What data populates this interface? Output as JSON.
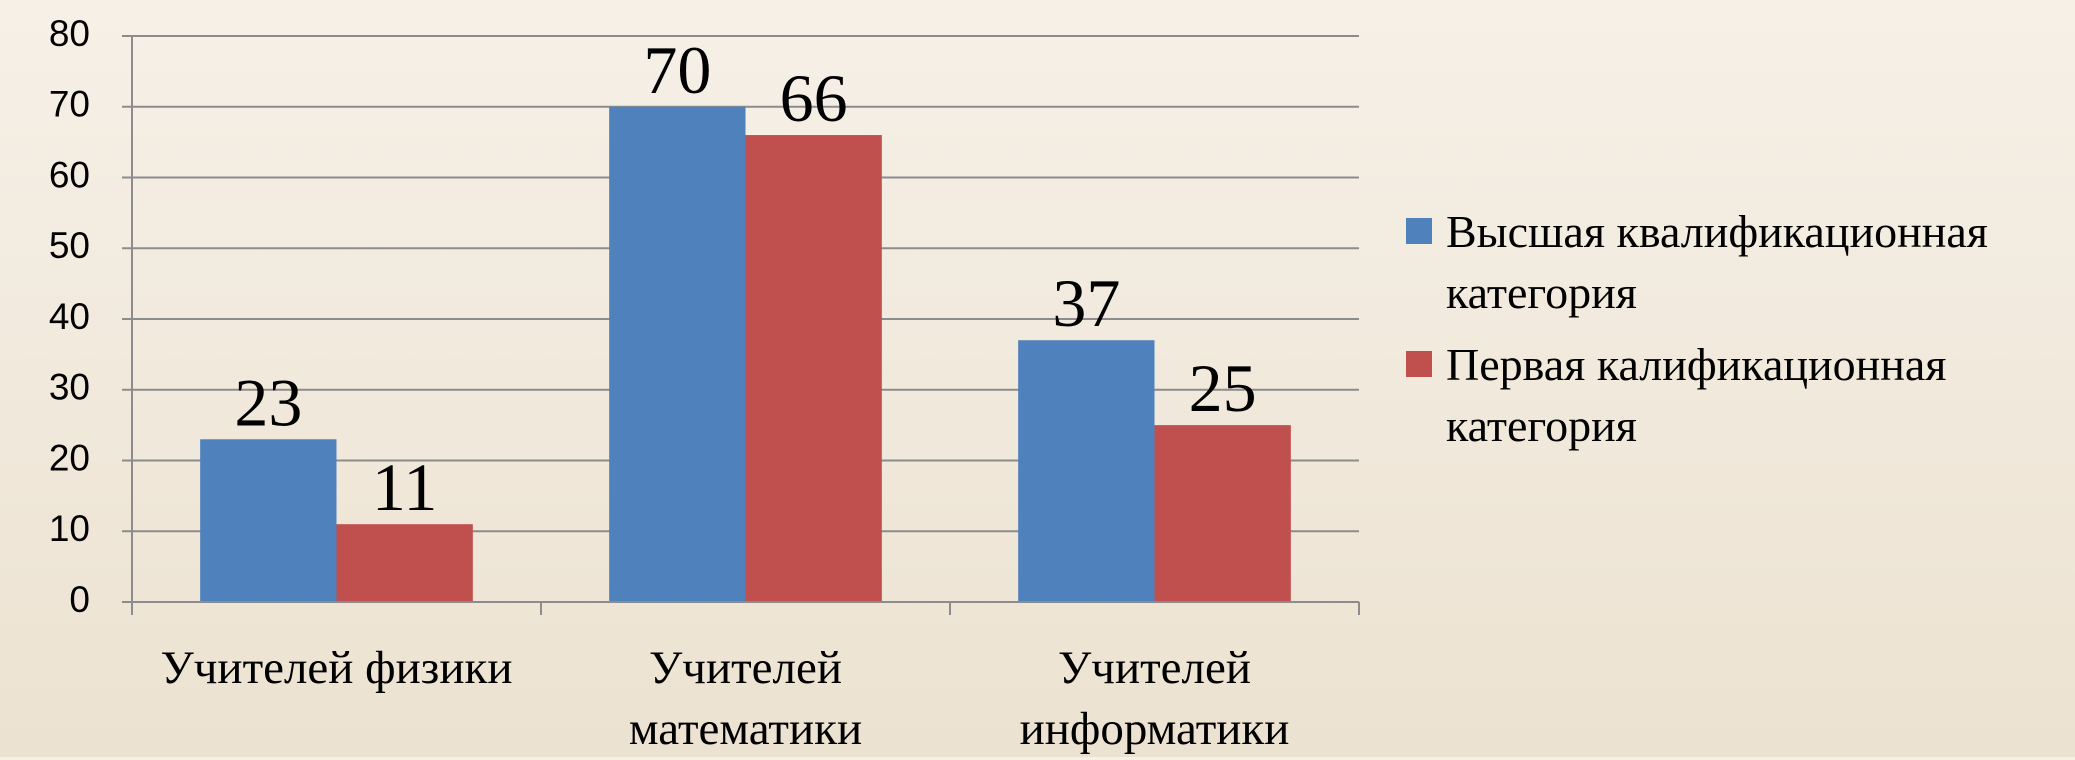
{
  "chart_data": {
    "type": "bar",
    "categories": [
      "Учителей физики",
      "Учителей математики",
      "Учителей информатики"
    ],
    "series": [
      {
        "name": "Высшая квалификационная категория",
        "color": "#4f81bd",
        "values": [
          23,
          70,
          37
        ]
      },
      {
        "name": "Первая калификационная категория",
        "color": "#c0504d",
        "values": [
          11,
          66,
          25
        ]
      }
    ],
    "ylim": [
      0,
      80
    ],
    "yticks": [
      0,
      10,
      20,
      30,
      40,
      50,
      60,
      70,
      80
    ],
    "grid": true,
    "legend": "right"
  }
}
